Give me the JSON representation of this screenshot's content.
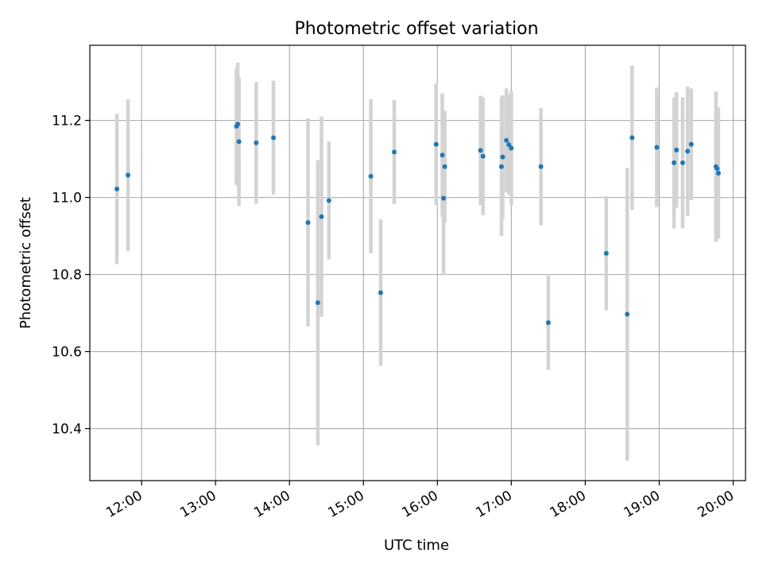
{
  "chart_data": {
    "type": "scatter",
    "title": "Photometric offset variation",
    "xlabel": "UTC time",
    "ylabel": "Photometric offset",
    "x_unit": "UTC time (hours)",
    "xlim": [
      "11:18",
      "20:10"
    ],
    "ylim": [
      10.265,
      11.395
    ],
    "x_ticks": [
      "12:00",
      "13:00",
      "14:00",
      "15:00",
      "16:00",
      "17:00",
      "18:00",
      "19:00",
      "20:00"
    ],
    "y_ticks": [
      "10.4",
      "10.6",
      "10.8",
      "11.0",
      "11.2"
    ],
    "grid": true,
    "colors": {
      "point": "#1f77b4",
      "errorbar": "#d3d3d3",
      "grid": "#b0b0b0"
    },
    "points": [
      {
        "x": "11:40",
        "y": 11.022,
        "err": 0.195
      },
      {
        "x": "11:49",
        "y": 11.058,
        "err": 0.197
      },
      {
        "x": "13:17",
        "y": 11.185,
        "err": 0.152
      },
      {
        "x": "13:18",
        "y": 11.19,
        "err": 0.16
      },
      {
        "x": "13:19",
        "y": 11.145,
        "err": 0.167
      },
      {
        "x": "13:33",
        "y": 11.142,
        "err": 0.158
      },
      {
        "x": "13:47",
        "y": 11.155,
        "err": 0.148
      },
      {
        "x": "14:15",
        "y": 10.935,
        "err": 0.27
      },
      {
        "x": "14:23",
        "y": 10.727,
        "err": 0.37
      },
      {
        "x": "14:26",
        "y": 10.95,
        "err": 0.26
      },
      {
        "x": "14:32",
        "y": 10.992,
        "err": 0.153
      },
      {
        "x": "15:06",
        "y": 11.055,
        "err": 0.2
      },
      {
        "x": "15:14",
        "y": 10.753,
        "err": 0.19
      },
      {
        "x": "15:25",
        "y": 11.118,
        "err": 0.135
      },
      {
        "x": "15:59",
        "y": 11.138,
        "err": 0.158
      },
      {
        "x": "16:04",
        "y": 11.11,
        "err": 0.16
      },
      {
        "x": "16:05",
        "y": 10.998,
        "err": 0.2
      },
      {
        "x": "16:06",
        "y": 11.08,
        "err": 0.145
      },
      {
        "x": "16:35",
        "y": 11.122,
        "err": 0.142
      },
      {
        "x": "16:37",
        "y": 11.107,
        "err": 0.153
      },
      {
        "x": "16:52",
        "y": 11.08,
        "err": 0.18
      },
      {
        "x": "16:53",
        "y": 11.105,
        "err": 0.16
      },
      {
        "x": "16:56",
        "y": 11.148,
        "err": 0.135
      },
      {
        "x": "16:58",
        "y": 11.137,
        "err": 0.13
      },
      {
        "x": "17:00",
        "y": 11.128,
        "err": 0.148
      },
      {
        "x": "17:24",
        "y": 11.08,
        "err": 0.152
      },
      {
        "x": "17:30",
        "y": 10.675,
        "err": 0.122
      },
      {
        "x": "18:17",
        "y": 10.855,
        "err": 0.148
      },
      {
        "x": "18:34",
        "y": 10.697,
        "err": 0.38
      },
      {
        "x": "18:38",
        "y": 11.155,
        "err": 0.187
      },
      {
        "x": "18:58",
        "y": 11.13,
        "err": 0.155
      },
      {
        "x": "19:12",
        "y": 11.09,
        "err": 0.17
      },
      {
        "x": "19:14",
        "y": 11.123,
        "err": 0.15
      },
      {
        "x": "19:19",
        "y": 11.09,
        "err": 0.17
      },
      {
        "x": "19:23",
        "y": 11.12,
        "err": 0.168
      },
      {
        "x": "19:26",
        "y": 11.138,
        "err": 0.145
      },
      {
        "x": "19:46",
        "y": 11.08,
        "err": 0.195
      },
      {
        "x": "19:47",
        "y": 11.075,
        "err": 0.16
      },
      {
        "x": "19:48",
        "y": 11.063,
        "err": 0.17
      }
    ]
  }
}
